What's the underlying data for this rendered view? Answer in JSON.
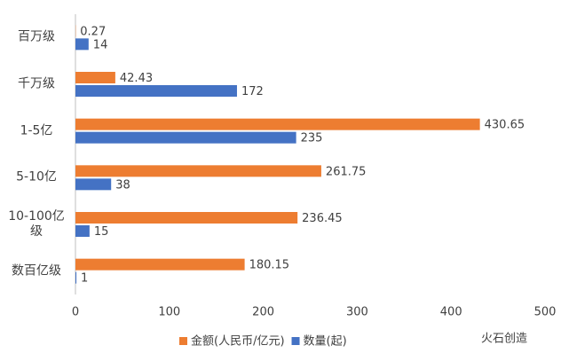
{
  "chart_data": {
    "type": "hbar",
    "categories": [
      "百万级",
      "千万级",
      "1-5亿",
      "5-10亿",
      "10-100亿级",
      "数百亿级"
    ],
    "series": [
      {
        "name": "金额(人民币/亿元)",
        "color": "#ed7d31",
        "values": [
          0.27,
          42.43,
          430.65,
          261.75,
          236.45,
          180.15
        ]
      },
      {
        "name": "数量(起)",
        "color": "#4472c4",
        "values": [
          14,
          172,
          235,
          38,
          15,
          1
        ]
      }
    ],
    "xlim": [
      0,
      500
    ],
    "xticks": [
      0,
      100,
      200,
      300,
      400,
      500
    ],
    "grid": false,
    "legend": "bottom"
  },
  "watermark": "火石创造"
}
